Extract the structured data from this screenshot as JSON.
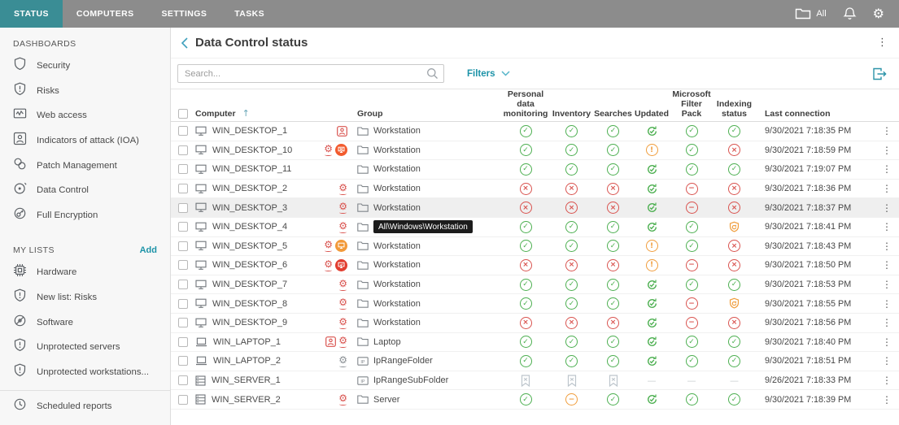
{
  "topbar": {
    "tabs": [
      {
        "label": "STATUS",
        "active": true
      },
      {
        "label": "COMPUTERS",
        "active": false
      },
      {
        "label": "SETTINGS",
        "active": false
      },
      {
        "label": "TASKS",
        "active": false
      }
    ],
    "scope_label": "All"
  },
  "sidebar": {
    "sections": [
      {
        "title": "DASHBOARDS",
        "action": null,
        "items": [
          {
            "icon": "shield",
            "label": "Security"
          },
          {
            "icon": "shield-excl",
            "label": "Risks"
          },
          {
            "icon": "web-chart",
            "label": "Web access"
          },
          {
            "icon": "person-box",
            "label": "Indicators of attack (IOA)"
          },
          {
            "icon": "patch",
            "label": "Patch Management"
          },
          {
            "icon": "data-control",
            "label": "Data Control"
          },
          {
            "icon": "encryption",
            "label": "Full Encryption"
          }
        ]
      },
      {
        "title": "MY LISTS",
        "action": "Add",
        "items": [
          {
            "icon": "hardware",
            "label": "Hardware"
          },
          {
            "icon": "shield-excl",
            "label": "New list: Risks"
          },
          {
            "icon": "software",
            "label": "Software"
          },
          {
            "icon": "shield-excl",
            "label": "Unprotected servers"
          },
          {
            "icon": "shield-excl",
            "label": "Unprotected workstations..."
          }
        ]
      }
    ],
    "footer_items": [
      {
        "icon": "clock",
        "label": "Scheduled reports"
      }
    ]
  },
  "header": {
    "title": "Data Control status"
  },
  "toolbar": {
    "search_placeholder": "Search...",
    "filters_label": "Filters"
  },
  "table": {
    "columns": [
      {
        "id": "select",
        "label": ""
      },
      {
        "id": "computer",
        "label": "Computer",
        "sorted": "asc"
      },
      {
        "id": "alerts",
        "label": ""
      },
      {
        "id": "group",
        "label": "Group"
      },
      {
        "id": "pdm",
        "label": "Personal data monitoring"
      },
      {
        "id": "inventory",
        "label": "Inventory"
      },
      {
        "id": "searches",
        "label": "Searches"
      },
      {
        "id": "updated",
        "label": "Updated"
      },
      {
        "id": "msfp",
        "label": "Microsoft Filter Pack"
      },
      {
        "id": "indexing",
        "label": "Indexing status"
      },
      {
        "id": "last",
        "label": "Last connection"
      },
      {
        "id": "menu",
        "label": ""
      }
    ],
    "rows": [
      {
        "computer": "WIN_DESKTOP_1",
        "device": "desktop",
        "alerts": [
          "ioa"
        ],
        "group_icon": "folder",
        "group": "Workstation",
        "statuses": [
          "check",
          "check",
          "check",
          "sync",
          "check",
          "check"
        ],
        "last_connection": "9/30/2021 7:18:35 PM"
      },
      {
        "computer": "WIN_DESKTOP_10",
        "device": "desktop",
        "alerts": [
          "gear-red",
          "cont-redx"
        ],
        "group_icon": "folder",
        "group": "Workstation",
        "statuses": [
          "check",
          "check",
          "check",
          "warn",
          "check",
          "cross"
        ],
        "last_connection": "9/30/2021 7:18:59 PM"
      },
      {
        "computer": "WIN_DESKTOP_11",
        "device": "desktop",
        "alerts": [],
        "group_icon": "folder",
        "group": "Workstation",
        "statuses": [
          "check",
          "check",
          "check",
          "sync",
          "check",
          "check"
        ],
        "last_connection": "9/30/2021 7:19:07 PM"
      },
      {
        "computer": "WIN_DESKTOP_2",
        "device": "desktop",
        "alerts": [
          "gear-red"
        ],
        "group_icon": "folder",
        "group": "Workstation",
        "statuses": [
          "cross",
          "cross",
          "cross",
          "sync",
          "minus",
          "cross"
        ],
        "last_connection": "9/30/2021 7:18:36 PM"
      },
      {
        "computer": "WIN_DESKTOP_3",
        "device": "desktop",
        "alerts": [
          "gear-red"
        ],
        "group_icon": "folder",
        "group": "Workstation",
        "statuses": [
          "cross",
          "cross",
          "cross",
          "sync",
          "minus",
          "cross"
        ],
        "last_connection": "9/30/2021 7:18:37 PM",
        "highlighted": true
      },
      {
        "computer": "WIN_DESKTOP_4",
        "device": "desktop",
        "alerts": [
          "gear-red"
        ],
        "group_icon": "folder",
        "group": "Workstation",
        "group_tooltip": "All\\Windows\\Workstation",
        "statuses": [
          "check",
          "check",
          "check",
          "sync",
          "check",
          "shieldsync"
        ],
        "last_connection": "9/30/2021 7:18:41 PM"
      },
      {
        "computer": "WIN_DESKTOP_5",
        "device": "desktop",
        "alerts": [
          "gear-red",
          "cont-orange"
        ],
        "group_icon": "folder",
        "group": "Workstation",
        "statuses": [
          "check",
          "check",
          "check",
          "warn",
          "check",
          "cross"
        ],
        "last_connection": "9/30/2021 7:18:43 PM"
      },
      {
        "computer": "WIN_DESKTOP_6",
        "device": "desktop",
        "alerts": [
          "gear-red",
          "cont-red"
        ],
        "group_icon": "folder",
        "group": "Workstation",
        "statuses": [
          "cross",
          "cross",
          "cross",
          "warn",
          "minus",
          "cross"
        ],
        "last_connection": "9/30/2021 7:18:50 PM"
      },
      {
        "computer": "WIN_DESKTOP_7",
        "device": "desktop",
        "alerts": [
          "gear-red"
        ],
        "group_icon": "folder",
        "group": "Workstation",
        "statuses": [
          "check",
          "check",
          "check",
          "sync",
          "check",
          "check"
        ],
        "last_connection": "9/30/2021 7:18:53 PM"
      },
      {
        "computer": "WIN_DESKTOP_8",
        "device": "desktop",
        "alerts": [
          "gear-red"
        ],
        "group_icon": "folder",
        "group": "Workstation",
        "statuses": [
          "check",
          "check",
          "check",
          "sync",
          "minus",
          "shieldsync"
        ],
        "last_connection": "9/30/2021 7:18:55 PM"
      },
      {
        "computer": "WIN_DESKTOP_9",
        "device": "desktop",
        "alerts": [
          "gear-red"
        ],
        "group_icon": "folder",
        "group": "Workstation",
        "statuses": [
          "cross",
          "cross",
          "cross",
          "sync",
          "minus",
          "cross"
        ],
        "last_connection": "9/30/2021 7:18:56 PM"
      },
      {
        "computer": "WIN_LAPTOP_1",
        "device": "laptop",
        "alerts": [
          "ioa",
          "gear-red"
        ],
        "group_icon": "folder",
        "group": "Laptop",
        "statuses": [
          "check",
          "check",
          "check",
          "sync",
          "check",
          "check"
        ],
        "last_connection": "9/30/2021 7:18:40 PM"
      },
      {
        "computer": "WIN_LAPTOP_2",
        "device": "laptop",
        "alerts": [
          "gear-gray"
        ],
        "group_icon": "ipfolder",
        "group": "IpRangeFolder",
        "statuses": [
          "check",
          "check",
          "check",
          "sync",
          "check",
          "check"
        ],
        "last_connection": "9/30/2021 7:18:51 PM"
      },
      {
        "computer": "WIN_SERVER_1",
        "device": "server",
        "alerts": [],
        "group_icon": "ipfolder",
        "group": "IpRangeSubFolder",
        "statuses": [
          "na",
          "na",
          "na",
          "dash",
          "dash",
          "dash"
        ],
        "last_connection": "9/26/2021 7:18:33 PM"
      },
      {
        "computer": "WIN_SERVER_2",
        "device": "server",
        "alerts": [
          "gear-red"
        ],
        "group_icon": "folder",
        "group": "Server",
        "statuses": [
          "check",
          "minusorange",
          "check",
          "sync",
          "check",
          "check"
        ],
        "last_connection": "9/30/2021 7:18:39 PM"
      }
    ]
  },
  "colors": {
    "topbar_bg": "#8c8c8c",
    "active_tab": "#3a8d95",
    "accent": "#1d93a8",
    "status_green": "#4caf50",
    "status_red": "#d9534f",
    "status_orange": "#f09d3c",
    "na_gray": "#bdc5cc",
    "row_highlight": "#efefef",
    "tooltip_bg": "#1c1c1c"
  }
}
